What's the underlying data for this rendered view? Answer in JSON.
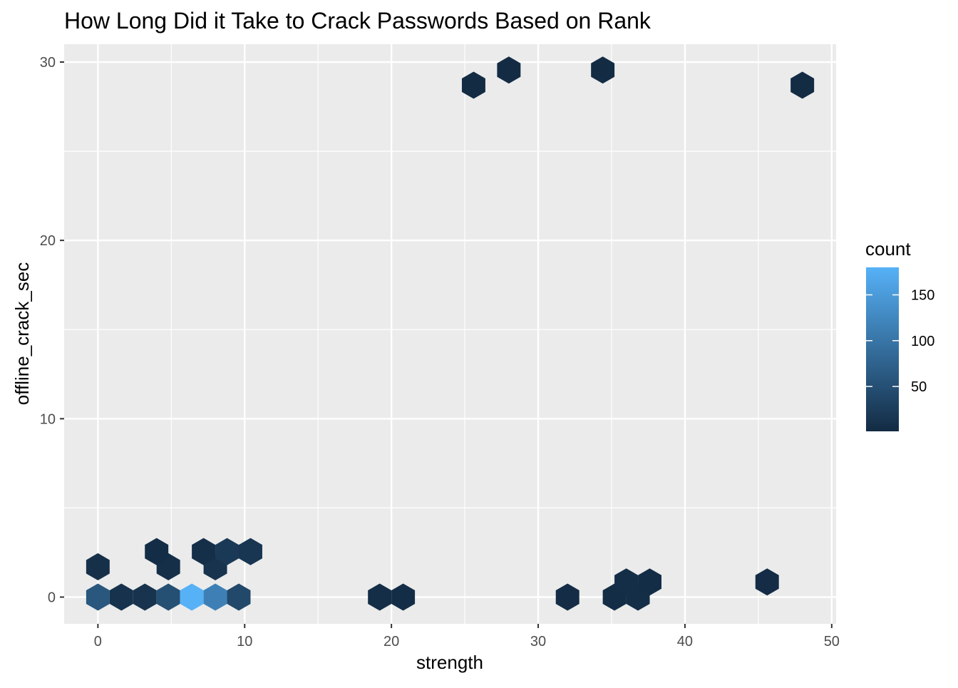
{
  "chart_data": {
    "type": "hexbin",
    "title": "How Long Did it Take to Crack Passwords Based on Rank",
    "xlabel": "strength",
    "ylabel": "offline_crack_sec",
    "xlim": [
      -2.3,
      50.3
    ],
    "ylim": [
      -1.5,
      31.0
    ],
    "x_ticks": [
      0,
      10,
      20,
      30,
      40,
      50
    ],
    "y_ticks": [
      0,
      10,
      20,
      30
    ],
    "grid": true,
    "legend": {
      "title": "count",
      "position": "right",
      "min": 1,
      "max": 180,
      "ticks": [
        50,
        100,
        150
      ],
      "low_color": "#132B43",
      "high_color": "#56B1F7"
    },
    "points": [
      {
        "x": 0,
        "y": 0,
        "count": 60
      },
      {
        "x": 1.6,
        "y": 0,
        "count": 10
      },
      {
        "x": 3.2,
        "y": 0,
        "count": 12
      },
      {
        "x": 4.8,
        "y": 0,
        "count": 50
      },
      {
        "x": 6.4,
        "y": 0,
        "count": 180
      },
      {
        "x": 8.0,
        "y": 0,
        "count": 115
      },
      {
        "x": 9.6,
        "y": 0,
        "count": 40
      },
      {
        "x": 19.2,
        "y": 0,
        "count": 5
      },
      {
        "x": 20.8,
        "y": 0,
        "count": 4
      },
      {
        "x": 32.0,
        "y": 0,
        "count": 3
      },
      {
        "x": 35.2,
        "y": 0,
        "count": 4
      },
      {
        "x": 36.8,
        "y": 0,
        "count": 5
      },
      {
        "x": 0,
        "y": 1.7,
        "count": 8
      },
      {
        "x": 4.8,
        "y": 1.7,
        "count": 6
      },
      {
        "x": 8.0,
        "y": 1.7,
        "count": 12
      },
      {
        "x": 4.0,
        "y": 2.55,
        "count": 4
      },
      {
        "x": 7.2,
        "y": 2.55,
        "count": 6
      },
      {
        "x": 8.8,
        "y": 2.55,
        "count": 20
      },
      {
        "x": 10.4,
        "y": 2.55,
        "count": 15
      },
      {
        "x": 36.0,
        "y": 0.85,
        "count": 5
      },
      {
        "x": 37.6,
        "y": 0.85,
        "count": 4
      },
      {
        "x": 45.6,
        "y": 0.85,
        "count": 3
      },
      {
        "x": 25.6,
        "y": 28.7,
        "count": 2
      },
      {
        "x": 28.0,
        "y": 29.55,
        "count": 2
      },
      {
        "x": 34.4,
        "y": 29.55,
        "count": 2
      },
      {
        "x": 48.0,
        "y": 28.7,
        "count": 2
      }
    ]
  }
}
